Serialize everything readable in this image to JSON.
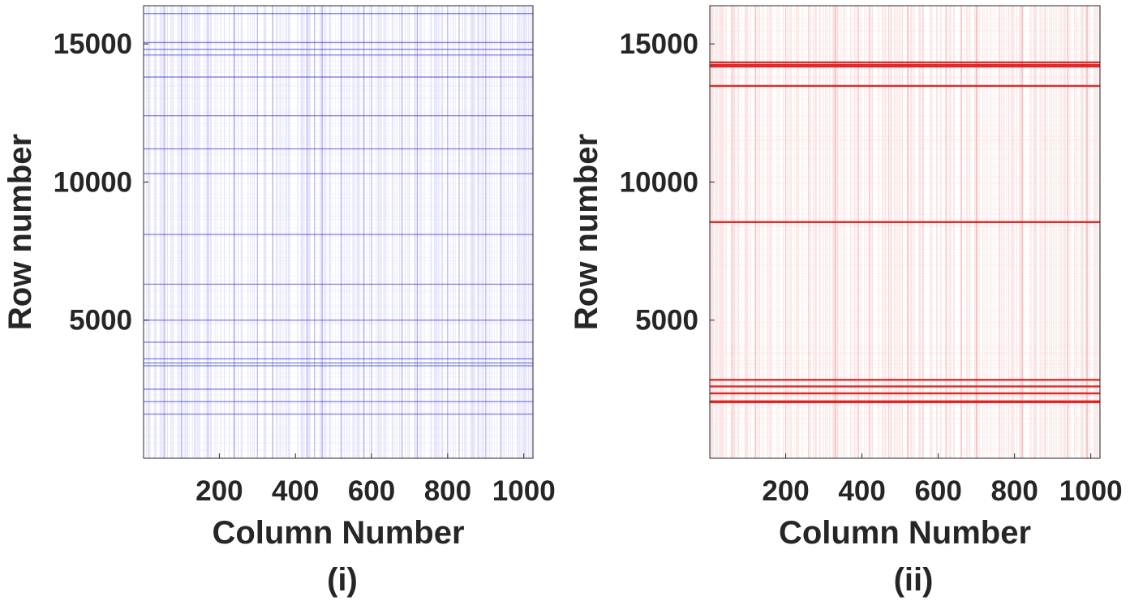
{
  "chart_data": [
    {
      "type": "scatter",
      "panel_label": "(i)",
      "xlabel": "Column Number",
      "ylabel": "Row number",
      "xlim": [
        1,
        1024
      ],
      "ylim": [
        1,
        16384
      ],
      "xticks": [
        200,
        400,
        600,
        800,
        1000
      ],
      "yticks": [
        5000,
        10000,
        15000
      ],
      "grid": false,
      "color": "#2b2bd9",
      "row_lines": [
        1600,
        2050,
        2500,
        3350,
        3450,
        3600,
        4200,
        5000,
        6300,
        8100,
        10300,
        11200,
        12400,
        13800,
        14600,
        14800,
        15050,
        16100
      ],
      "column_lines": [
        55,
        100,
        170,
        240,
        300,
        340,
        430,
        450,
        470,
        520,
        580,
        600,
        680,
        720,
        800,
        830,
        900,
        940
      ]
    },
    {
      "type": "scatter",
      "panel_label": "(ii)",
      "xlabel": "Column Number",
      "ylabel": "Row number",
      "xlim": [
        1,
        1024
      ],
      "ylim": [
        1,
        16384
      ],
      "xticks": [
        200,
        400,
        600,
        800,
        1000
      ],
      "yticks": [
        5000,
        10000,
        15000
      ],
      "grid": false,
      "color": "#e02020",
      "row_lines": [
        2030,
        2060,
        2350,
        2600,
        2840,
        8550,
        13480,
        14180,
        14240,
        14330
      ],
      "column_lines": [
        60,
        120,
        200,
        260,
        330,
        390,
        420,
        470,
        520,
        560,
        620,
        660,
        700,
        760,
        820,
        880,
        940,
        990
      ]
    }
  ]
}
